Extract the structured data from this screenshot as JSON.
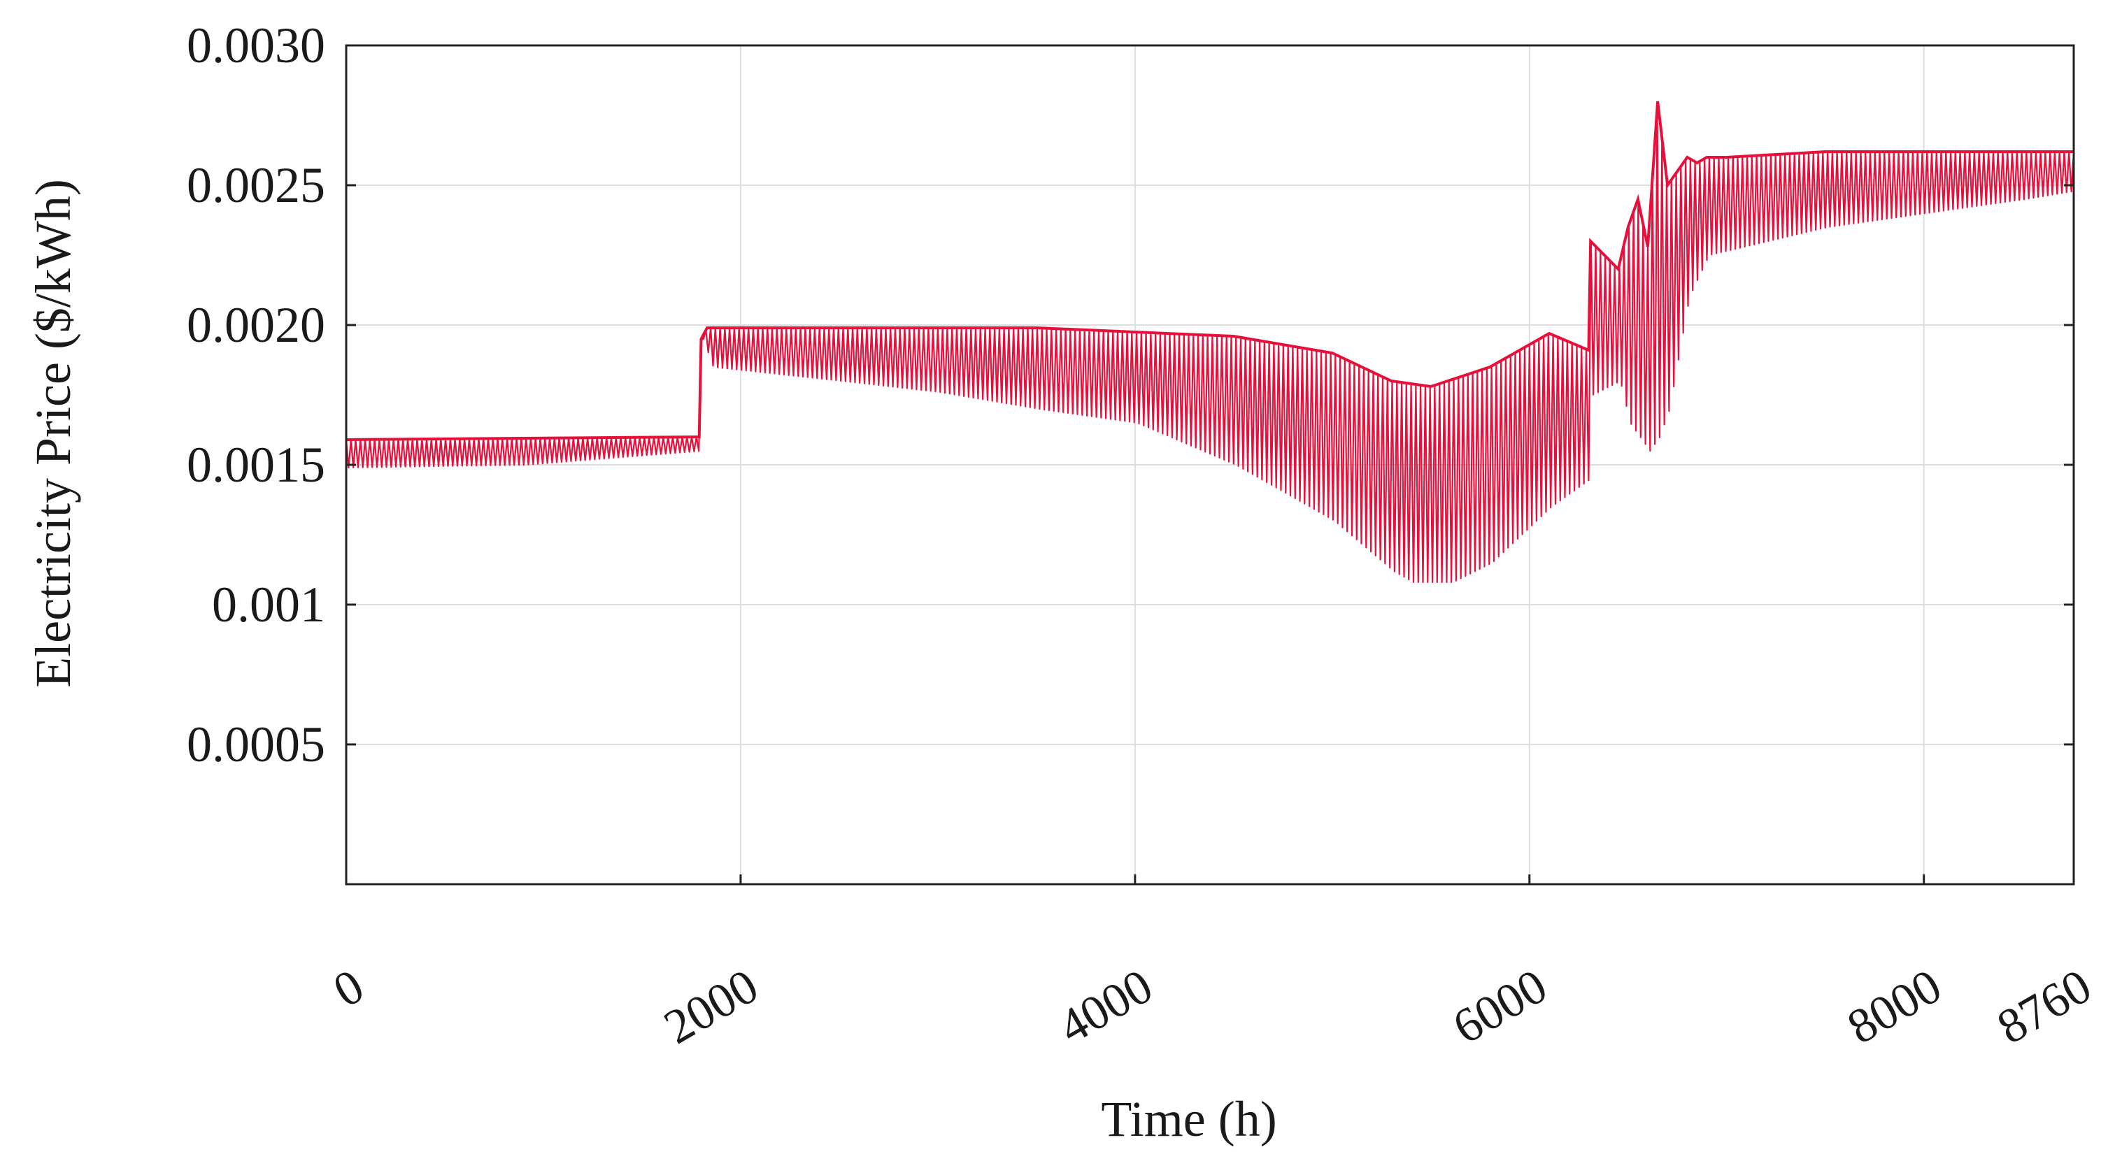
{
  "chart_data": {
    "type": "line",
    "title": "",
    "xlabel": "Time (h)",
    "ylabel": "Electricity Price ($/kWh)",
    "xlim": [
      0,
      8760
    ],
    "ylim": [
      0,
      0.003
    ],
    "x_ticks": [
      0,
      2000,
      4000,
      6000,
      8000,
      8760
    ],
    "x_tick_labels": [
      "0",
      "2000",
      "4000",
      "6000",
      "8000",
      "8760"
    ],
    "y_ticks": [
      0.0005,
      0.001,
      0.0015,
      0.002,
      0.0025,
      0.003
    ],
    "y_tick_labels": [
      "0.0005",
      "0.001",
      "0.0015",
      "0.0020",
      "0.0025",
      "0.0030"
    ],
    "grid": true,
    "legend": "none",
    "series": [
      {
        "color": "#e8103a",
        "description_of_shape": "hourly price oscillating between an upper envelope and a lower envelope",
        "upper_envelope": {
          "x": [
            0,
            1790,
            1800,
            1830,
            2500,
            3500,
            4500,
            5000,
            5300,
            5500,
            5800,
            6100,
            6300,
            6310,
            6450,
            6500,
            6550,
            6600,
            6650,
            6700,
            6750,
            6800,
            6850,
            6900,
            7000,
            7500,
            8000,
            8760
          ],
          "y": [
            0.00159,
            0.0016,
            0.00195,
            0.00199,
            0.00199,
            0.00199,
            0.00196,
            0.0019,
            0.0018,
            0.00178,
            0.00185,
            0.00197,
            0.00191,
            0.0023,
            0.0022,
            0.00235,
            0.00245,
            0.00228,
            0.0028,
            0.0025,
            0.00255,
            0.0026,
            0.00258,
            0.0026,
            0.0026,
            0.00262,
            0.00262,
            0.00262
          ]
        },
        "lower_envelope": {
          "x": [
            0,
            900,
            1790,
            1800,
            1850,
            2500,
            3000,
            3500,
            4000,
            4500,
            5000,
            5300,
            5400,
            5600,
            5800,
            6100,
            6300,
            6310,
            6450,
            6500,
            6600,
            6650,
            6700,
            6800,
            6900,
            7200,
            7500,
            8000,
            8500,
            8760
          ],
          "y": [
            0.00149,
            0.0015,
            0.00155,
            0.00195,
            0.00185,
            0.0018,
            0.00176,
            0.0017,
            0.00165,
            0.0015,
            0.0013,
            0.00112,
            0.00108,
            0.00108,
            0.00115,
            0.00135,
            0.00145,
            0.00175,
            0.0018,
            0.00165,
            0.00155,
            0.0016,
            0.0017,
            0.0021,
            0.00225,
            0.0023,
            0.00235,
            0.0024,
            0.00245,
            0.00248
          ]
        }
      }
    ]
  }
}
